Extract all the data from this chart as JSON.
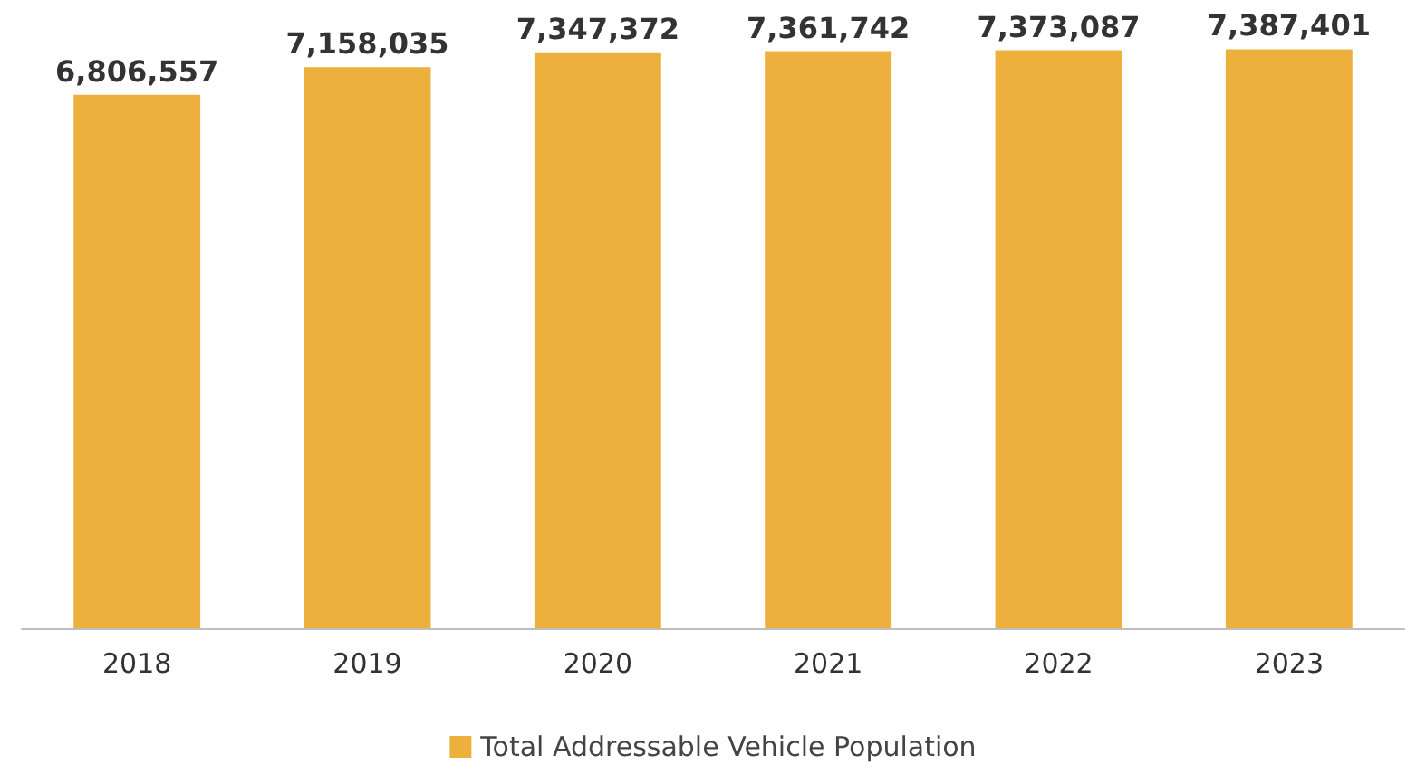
{
  "chart_data": {
    "type": "bar",
    "categories": [
      "2018",
      "2019",
      "2020",
      "2021",
      "2022",
      "2023"
    ],
    "series": [
      {
        "name": "Total Addressable Vehicle Population",
        "color": "#edb03c",
        "values": [
          6806557,
          7158035,
          7347372,
          7361742,
          7373087,
          7387401
        ],
        "value_labels": [
          "6,806,557",
          "7,158,035",
          "7,347,372",
          "7,361,742",
          "7,373,087",
          "7,387,401"
        ]
      }
    ],
    "tick_labels": "x",
    "legend": "bottom"
  }
}
